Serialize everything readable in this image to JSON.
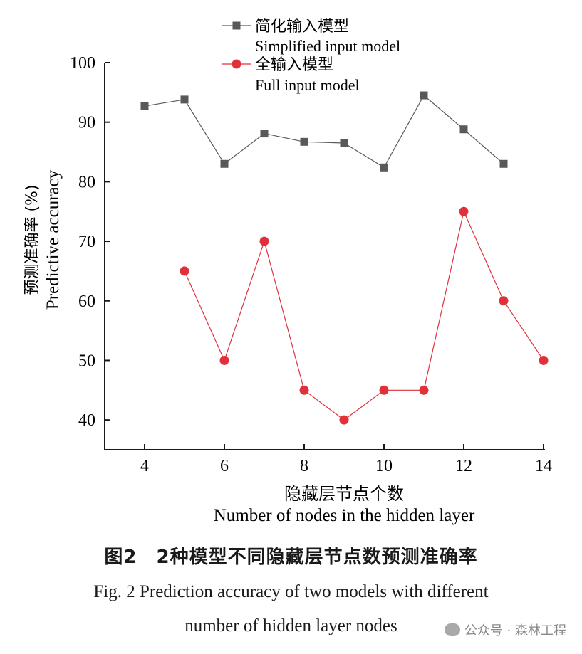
{
  "chart_data": {
    "type": "line",
    "x_label_cn": "隐藏层节点个数",
    "x_label_en": "Number of nodes in the hidden layer",
    "y_label_cn": "预测准确率 (%)",
    "y_label_en": "Predictive accuracy",
    "xlim": [
      3,
      14
    ],
    "ylim": [
      35,
      100
    ],
    "x_ticks": [
      4,
      6,
      8,
      10,
      12,
      14
    ],
    "y_ticks": [
      40,
      50,
      60,
      70,
      80,
      90,
      100
    ],
    "grid": false,
    "legend_position": "top",
    "series": [
      {
        "name_cn": "简化输入模型",
        "name_en": "Simplified input model",
        "marker": "square",
        "color": "#595959",
        "x": [
          4,
          5,
          6,
          7,
          8,
          9,
          10,
          11,
          12,
          13
        ],
        "y": [
          92.7,
          93.8,
          83.0,
          88.1,
          86.7,
          86.5,
          82.4,
          94.5,
          88.8,
          83.0
        ]
      },
      {
        "name_cn": "全输入模型",
        "name_en": "Full input model",
        "marker": "circle",
        "color": "#e0313a",
        "x": [
          5,
          6,
          7,
          8,
          9,
          10,
          11,
          12,
          13,
          14
        ],
        "y": [
          65,
          50,
          70,
          45,
          40,
          45,
          45,
          75,
          60,
          50
        ]
      }
    ]
  },
  "caption": {
    "cn": "图2　2种模型不同隐藏层节点数预测准确率",
    "en_line1": "Fig. 2  Prediction accuracy of two models with different",
    "en_line2": "number of hidden layer nodes"
  },
  "watermark": "公众号 · 森林工程"
}
